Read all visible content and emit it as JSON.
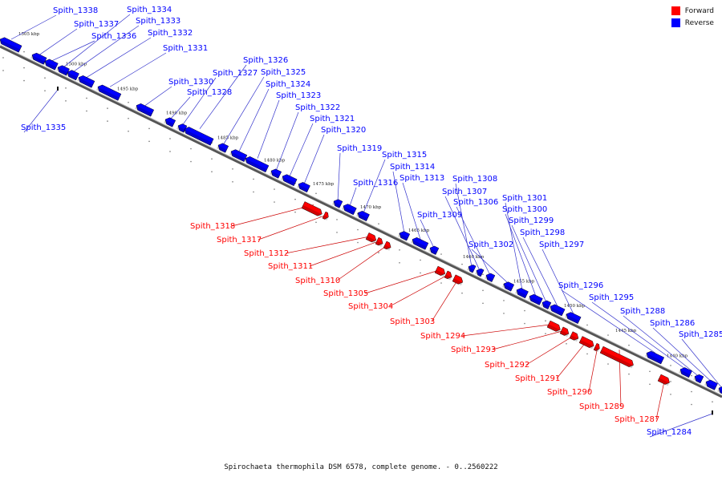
{
  "colors": {
    "forward": "#ff0000",
    "reverse": "#0000ff",
    "backbone": "#555555",
    "leader_forward": "#cc0000",
    "leader_reverse": "#3333cc"
  },
  "legend": [
    {
      "label": "Forward",
      "color": "#ff0000"
    },
    {
      "label": "Reverse",
      "color": "#0000ff"
    }
  ],
  "caption": "Spirochaeta thermophila DSM 6578, complete genome. - 0..2560222",
  "ticks": [
    "1505 kbp",
    "1500 kbp",
    "1495 kbp",
    "1490 kbp",
    "1485 kbp",
    "1480 kbp",
    "1475 kbp",
    "1470 kbp",
    "1465 kbp",
    "1460 kbp",
    "1455 kbp",
    "1450 kbp",
    "1445 kbp",
    "1440 kbp"
  ],
  "genes": [
    "Spith_1338",
    "Spith_1337",
    "Spith_1336",
    "Spith_1335",
    "Spith_1334",
    "Spith_1333",
    "Spith_1332",
    "Spith_1331",
    "Spith_1330",
    "Spith_1328",
    "Spith_1327",
    "Spith_1326",
    "Spith_1325",
    "Spith_1324",
    "Spith_1323",
    "Spith_1322",
    "Spith_1321",
    "Spith_1320",
    "Spith_1319",
    "Spith_1318",
    "Spith_1317",
    "Spith_1316",
    "Spith_1315",
    "Spith_1314",
    "Spith_1313",
    "Spith_1312",
    "Spith_1311",
    "Spith_1310",
    "Spith_1309",
    "Spith_1308",
    "Spith_1307",
    "Spith_1306",
    "Spith_1305",
    "Spith_1304",
    "Spith_1303",
    "Spith_1302",
    "Spith_1301",
    "Spith_1300",
    "Spith_1299",
    "Spith_1298",
    "Spith_1297",
    "Spith_1296",
    "Spith_1295",
    "Spith_1294",
    "Spith_1293",
    "Spith_1292",
    "Spith_1291",
    "Spith_1290",
    "Spith_1289",
    "Spith_1288",
    "Spith_1287",
    "Spith_1286",
    "Spith_1285",
    "Spith_1284"
  ]
}
